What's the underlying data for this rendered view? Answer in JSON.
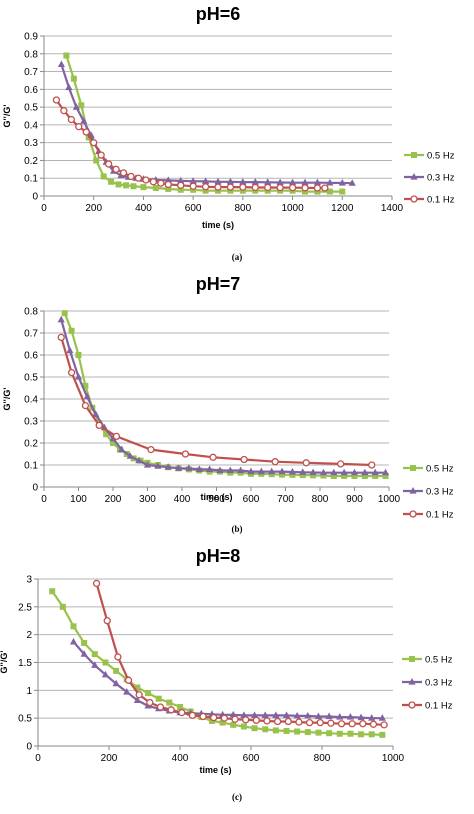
{
  "chart_data": [
    {
      "type": "line",
      "title": "pH=6",
      "xlabel": "time (s)",
      "ylabel": "G''/G'",
      "xlim": [
        0,
        1400
      ],
      "ylim": [
        0,
        0.9
      ],
      "xticks": [
        0,
        200,
        400,
        600,
        800,
        1000,
        1200,
        1400
      ],
      "yticks": [
        0,
        0.1,
        0.2,
        0.3,
        0.4,
        0.5,
        0.6,
        0.7,
        0.8,
        0.9
      ],
      "ytick_labels": [
        "0",
        "0.1",
        "0.2",
        "0.3",
        "0.4",
        "0.5",
        "0.6",
        "0.7",
        "0.8",
        "0.9"
      ],
      "grid": "horizontal",
      "legend": "right",
      "caption": "(a)",
      "series": [
        {
          "name": "0.5 Hz",
          "color": "#99c24d",
          "marker": "square",
          "x": [
            90,
            120,
            150,
            180,
            210,
            240,
            270,
            300,
            330,
            360,
            400,
            450,
            500,
            550,
            600,
            650,
            700,
            750,
            800,
            850,
            900,
            950,
            1000,
            1050,
            1100,
            1150,
            1200
          ],
          "y": [
            0.79,
            0.66,
            0.51,
            0.33,
            0.2,
            0.11,
            0.08,
            0.065,
            0.06,
            0.055,
            0.05,
            0.045,
            0.04,
            0.035,
            0.035,
            0.03,
            0.03,
            0.03,
            0.03,
            0.03,
            0.03,
            0.03,
            0.03,
            0.025,
            0.025,
            0.025,
            0.025
          ]
        },
        {
          "name": "0.3 Hz",
          "color": "#8064a2",
          "marker": "triangle",
          "x": [
            70,
            100,
            130,
            160,
            190,
            220,
            250,
            280,
            310,
            340,
            370,
            400,
            450,
            500,
            550,
            600,
            650,
            700,
            750,
            800,
            850,
            900,
            950,
            1000,
            1050,
            1100,
            1150,
            1200,
            1240
          ],
          "y": [
            0.74,
            0.61,
            0.5,
            0.42,
            0.34,
            0.25,
            0.19,
            0.14,
            0.115,
            0.105,
            0.1,
            0.095,
            0.09,
            0.088,
            0.085,
            0.083,
            0.082,
            0.08,
            0.08,
            0.078,
            0.078,
            0.077,
            0.076,
            0.075,
            0.075,
            0.075,
            0.074,
            0.073,
            0.072
          ]
        },
        {
          "name": "0.1 Hz",
          "color": "#c0504d",
          "marker": "circle",
          "x": [
            50,
            80,
            110,
            140,
            170,
            200,
            230,
            260,
            290,
            320,
            350,
            380,
            410,
            440,
            470,
            500,
            550,
            600,
            650,
            700,
            750,
            800,
            850,
            900,
            950,
            1000,
            1050,
            1100,
            1130
          ],
          "y": [
            0.54,
            0.48,
            0.43,
            0.39,
            0.36,
            0.3,
            0.23,
            0.18,
            0.15,
            0.13,
            0.11,
            0.1,
            0.09,
            0.08,
            0.072,
            0.065,
            0.06,
            0.055,
            0.052,
            0.05,
            0.05,
            0.05,
            0.048,
            0.048,
            0.047,
            0.047,
            0.046,
            0.045,
            0.045
          ]
        }
      ]
    },
    {
      "type": "line",
      "title": "pH=7",
      "xlabel": "time (s)",
      "ylabel": "G''/G'",
      "xlim": [
        0,
        1000
      ],
      "ylim": [
        0,
        0.8
      ],
      "xticks": [
        0,
        100,
        200,
        300,
        400,
        500,
        600,
        700,
        800,
        900,
        1000
      ],
      "yticks": [
        0,
        0.1,
        0.2,
        0.3,
        0.4,
        0.5,
        0.6,
        0.7,
        0.8
      ],
      "ytick_labels": [
        "0",
        "0.1",
        "0.2",
        "0.3",
        "0.4",
        "0.5",
        "0.6",
        "0.7",
        "0.8"
      ],
      "grid": "horizontal",
      "legend": "right",
      "caption": "(b)",
      "series": [
        {
          "name": "0.5 Hz",
          "color": "#99c24d",
          "marker": "square",
          "x": [
            60,
            80,
            100,
            120,
            140,
            160,
            180,
            200,
            220,
            240,
            260,
            280,
            300,
            330,
            360,
            390,
            420,
            450,
            480,
            510,
            540,
            570,
            600,
            630,
            660,
            690,
            720,
            750,
            780,
            810,
            840,
            870,
            900,
            930,
            960,
            990
          ],
          "y": [
            0.79,
            0.71,
            0.6,
            0.46,
            0.36,
            0.29,
            0.24,
            0.2,
            0.17,
            0.15,
            0.13,
            0.12,
            0.11,
            0.1,
            0.09,
            0.085,
            0.08,
            0.075,
            0.07,
            0.07,
            0.065,
            0.065,
            0.06,
            0.06,
            0.058,
            0.056,
            0.055,
            0.054,
            0.053,
            0.052,
            0.05,
            0.05,
            0.05,
            0.05,
            0.05,
            0.05
          ]
        },
        {
          "name": "0.3 Hz",
          "color": "#8064a2",
          "marker": "triangle",
          "x": [
            50,
            75,
            100,
            125,
            150,
            175,
            200,
            225,
            250,
            275,
            300,
            330,
            360,
            390,
            420,
            450,
            480,
            510,
            540,
            570,
            600,
            630,
            660,
            690,
            720,
            750,
            780,
            810,
            840,
            870,
            900,
            930,
            960,
            990
          ],
          "y": [
            0.76,
            0.62,
            0.5,
            0.41,
            0.33,
            0.27,
            0.22,
            0.17,
            0.14,
            0.12,
            0.1,
            0.095,
            0.09,
            0.085,
            0.085,
            0.08,
            0.08,
            0.075,
            0.075,
            0.075,
            0.07,
            0.07,
            0.07,
            0.07,
            0.068,
            0.067,
            0.066,
            0.065,
            0.065,
            0.065,
            0.065,
            0.065,
            0.065,
            0.065
          ]
        },
        {
          "name": "0.1 Hz",
          "color": "#c0504d",
          "marker": "circle",
          "x": [
            50,
            80,
            120,
            160,
            210,
            310,
            410,
            490,
            580,
            670,
            760,
            860,
            950
          ],
          "y": [
            0.68,
            0.52,
            0.37,
            0.28,
            0.23,
            0.17,
            0.15,
            0.135,
            0.125,
            0.115,
            0.11,
            0.105,
            0.1
          ]
        }
      ]
    },
    {
      "type": "line",
      "title": "pH=8",
      "xlabel": "time (s)",
      "ylabel": "G''/G'",
      "xlim": [
        0,
        1000
      ],
      "ylim": [
        0,
        3
      ],
      "xticks": [
        0,
        200,
        400,
        600,
        800,
        1000
      ],
      "yticks": [
        0,
        0.5,
        1,
        1.5,
        2,
        2.5,
        3
      ],
      "ytick_labels": [
        "0",
        "0.5",
        "1",
        "1.5",
        "2",
        "2.5",
        "3"
      ],
      "grid": "horizontal",
      "legend": "right",
      "caption": "(c)",
      "series": [
        {
          "name": "0.5 Hz",
          "color": "#99c24d",
          "marker": "square",
          "x": [
            40,
            70,
            100,
            130,
            160,
            190,
            220,
            250,
            280,
            310,
            340,
            370,
            400,
            430,
            460,
            490,
            520,
            550,
            580,
            610,
            640,
            670,
            700,
            730,
            760,
            790,
            820,
            850,
            880,
            910,
            940,
            970
          ],
          "y": [
            2.78,
            2.5,
            2.15,
            1.85,
            1.65,
            1.5,
            1.35,
            1.2,
            1.05,
            0.95,
            0.85,
            0.78,
            0.7,
            0.62,
            0.52,
            0.45,
            0.42,
            0.38,
            0.35,
            0.32,
            0.3,
            0.28,
            0.27,
            0.26,
            0.25,
            0.24,
            0.23,
            0.22,
            0.22,
            0.21,
            0.21,
            0.2
          ]
        },
        {
          "name": "0.3 Hz",
          "color": "#8064a2",
          "marker": "triangle",
          "x": [
            100,
            130,
            160,
            190,
            220,
            250,
            280,
            310,
            340,
            370,
            400,
            430,
            460,
            490,
            520,
            550,
            580,
            610,
            640,
            670,
            700,
            730,
            760,
            790,
            820,
            850,
            880,
            910,
            940,
            970
          ],
          "y": [
            1.87,
            1.65,
            1.45,
            1.28,
            1.12,
            0.97,
            0.82,
            0.72,
            0.67,
            0.63,
            0.6,
            0.59,
            0.58,
            0.57,
            0.56,
            0.56,
            0.55,
            0.55,
            0.55,
            0.55,
            0.55,
            0.54,
            0.54,
            0.53,
            0.53,
            0.52,
            0.52,
            0.51,
            0.5,
            0.5
          ]
        },
        {
          "name": "0.1 Hz",
          "color": "#c0504d",
          "marker": "circle",
          "x": [
            165,
            195,
            225,
            255,
            285,
            315,
            345,
            375,
            405,
            435,
            465,
            495,
            525,
            555,
            585,
            615,
            645,
            675,
            705,
            735,
            765,
            795,
            825,
            855,
            885,
            915,
            945,
            975
          ],
          "y": [
            2.92,
            2.25,
            1.6,
            1.18,
            0.92,
            0.78,
            0.7,
            0.65,
            0.6,
            0.55,
            0.53,
            0.51,
            0.5,
            0.48,
            0.47,
            0.46,
            0.45,
            0.44,
            0.44,
            0.43,
            0.42,
            0.42,
            0.41,
            0.4,
            0.4,
            0.4,
            0.39,
            0.38
          ]
        }
      ]
    }
  ]
}
